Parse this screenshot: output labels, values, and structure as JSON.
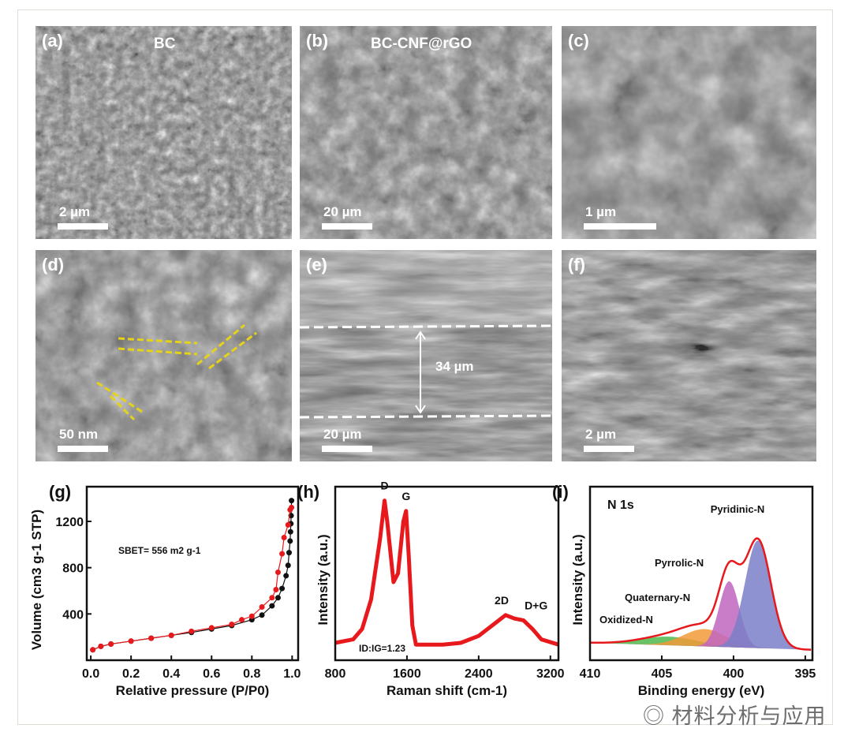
{
  "panels": [
    {
      "label": "(a)",
      "title": "BC",
      "scale": "2 µm",
      "kind": "sem-fibers"
    },
    {
      "label": "(b)",
      "title": "BC-CNF@rGO",
      "scale": "20 µm",
      "kind": "sem-flakes"
    },
    {
      "label": "(c)",
      "title": "",
      "scale": "1 µm",
      "kind": "sem-sheets"
    },
    {
      "label": "(d)",
      "title": "",
      "scale": "50 nm",
      "kind": "tem"
    },
    {
      "label": "(e)",
      "title": "",
      "scale": "20 µm",
      "kind": "sem-cross-section",
      "annotation": "34 µm"
    },
    {
      "label": "(f)",
      "title": "",
      "scale": "2 µm",
      "kind": "sem-layers"
    }
  ],
  "colors": {
    "red": "#e8191c",
    "black": "#111111",
    "pyridinic": "#7a7fc8",
    "pyrrolic": "#c066c0",
    "quaternary": "#f19a38",
    "oxidized": "#4cb84a",
    "highlight": "#e5d21a"
  },
  "chart_data": [
    {
      "label": "(g)",
      "type": "scatter",
      "xlabel": "Relative pressure (P/P0)",
      "ylabel": "Volume (cm3 g-1 STP)",
      "xlim": [
        -0.02,
        1.03
      ],
      "ylim": [
        0,
        1500
      ],
      "xticks": [
        "0.0",
        "0.2",
        "0.4",
        "0.6",
        "0.8",
        "1.0"
      ],
      "yticks": [
        "400",
        "800",
        "1200"
      ],
      "annotation": "SBET= 556 m2 g-1",
      "series": [
        {
          "color": "#111111",
          "points": [
            [
              0.01,
              90
            ],
            [
              0.05,
              120
            ],
            [
              0.1,
              140
            ],
            [
              0.2,
              165
            ],
            [
              0.3,
              190
            ],
            [
              0.4,
              215
            ],
            [
              0.5,
              240
            ],
            [
              0.6,
              270
            ],
            [
              0.7,
              300
            ],
            [
              0.8,
              350
            ],
            [
              0.85,
              390
            ],
            [
              0.9,
              470
            ],
            [
              0.93,
              540
            ],
            [
              0.95,
              620
            ],
            [
              0.97,
              730
            ],
            [
              0.98,
              820
            ],
            [
              0.985,
              930
            ],
            [
              0.99,
              1030
            ],
            [
              0.992,
              1110
            ],
            [
              0.994,
              1180
            ],
            [
              0.995,
              1250
            ],
            [
              0.997,
              1380
            ]
          ]
        },
        {
          "color": "#e8191c",
          "points": [
            [
              0.997,
              1320
            ],
            [
              0.99,
              1300
            ],
            [
              0.98,
              1170
            ],
            [
              0.96,
              1060
            ],
            [
              0.95,
              920
            ],
            [
              0.93,
              760
            ],
            [
              0.92,
              610
            ],
            [
              0.9,
              540
            ],
            [
              0.85,
              460
            ],
            [
              0.8,
              380
            ],
            [
              0.75,
              350
            ],
            [
              0.7,
              310
            ],
            [
              0.6,
              280
            ],
            [
              0.5,
              250
            ],
            [
              0.4,
              215
            ],
            [
              0.3,
              190
            ],
            [
              0.2,
              165
            ],
            [
              0.1,
              140
            ],
            [
              0.05,
              120
            ],
            [
              0.01,
              90
            ]
          ]
        }
      ]
    },
    {
      "label": "(h)",
      "type": "line",
      "xlabel": "Raman shift (cm-1)",
      "ylabel": "Intensity (a.u.)",
      "xlim": [
        800,
        3290
      ],
      "ylim": [
        0,
        100
      ],
      "xticks": [
        "800",
        "1600",
        "2400",
        "3200"
      ],
      "peak_labels": [
        {
          "text": "D",
          "x": 1350
        },
        {
          "text": "G",
          "x": 1590
        },
        {
          "text": "2D",
          "x": 2700
        },
        {
          "text": "D+G",
          "x": 2930
        }
      ],
      "annotation": "ID:IG=1.23",
      "points": [
        [
          800,
          10
        ],
        [
          1000,
          12
        ],
        [
          1100,
          18
        ],
        [
          1200,
          35
        ],
        [
          1300,
          70
        ],
        [
          1350,
          92
        ],
        [
          1380,
          80
        ],
        [
          1450,
          45
        ],
        [
          1500,
          50
        ],
        [
          1560,
          80
        ],
        [
          1590,
          86
        ],
        [
          1620,
          60
        ],
        [
          1660,
          20
        ],
        [
          1700,
          9
        ],
        [
          2000,
          9
        ],
        [
          2200,
          10
        ],
        [
          2400,
          14
        ],
        [
          2600,
          22
        ],
        [
          2700,
          26
        ],
        [
          2800,
          24
        ],
        [
          2900,
          23
        ],
        [
          3000,
          18
        ],
        [
          3100,
          12
        ],
        [
          3290,
          9
        ]
      ]
    },
    {
      "label": "(i)",
      "type": "area",
      "title": "N 1s",
      "xlabel": "Binding energy (eV)",
      "ylabel": "Intensity (a.u.)",
      "xlim": [
        410,
        394.5
      ],
      "ylim": [
        0,
        100
      ],
      "xticks": [
        "410",
        "405",
        "400",
        "395"
      ],
      "components": [
        {
          "name": "Oxidized-N",
          "center": 404.5,
          "height": 5,
          "width": 2.0
        },
        {
          "name": "Quaternary-N",
          "center": 402.0,
          "height": 10,
          "width": 1.5
        },
        {
          "name": "Pyrrolic-N",
          "center": 400.3,
          "height": 38,
          "width": 0.7
        },
        {
          "name": "Pyridinic-N",
          "center": 398.3,
          "height": 62,
          "width": 0.9
        }
      ]
    }
  ],
  "watermark": "材料分析与应用"
}
